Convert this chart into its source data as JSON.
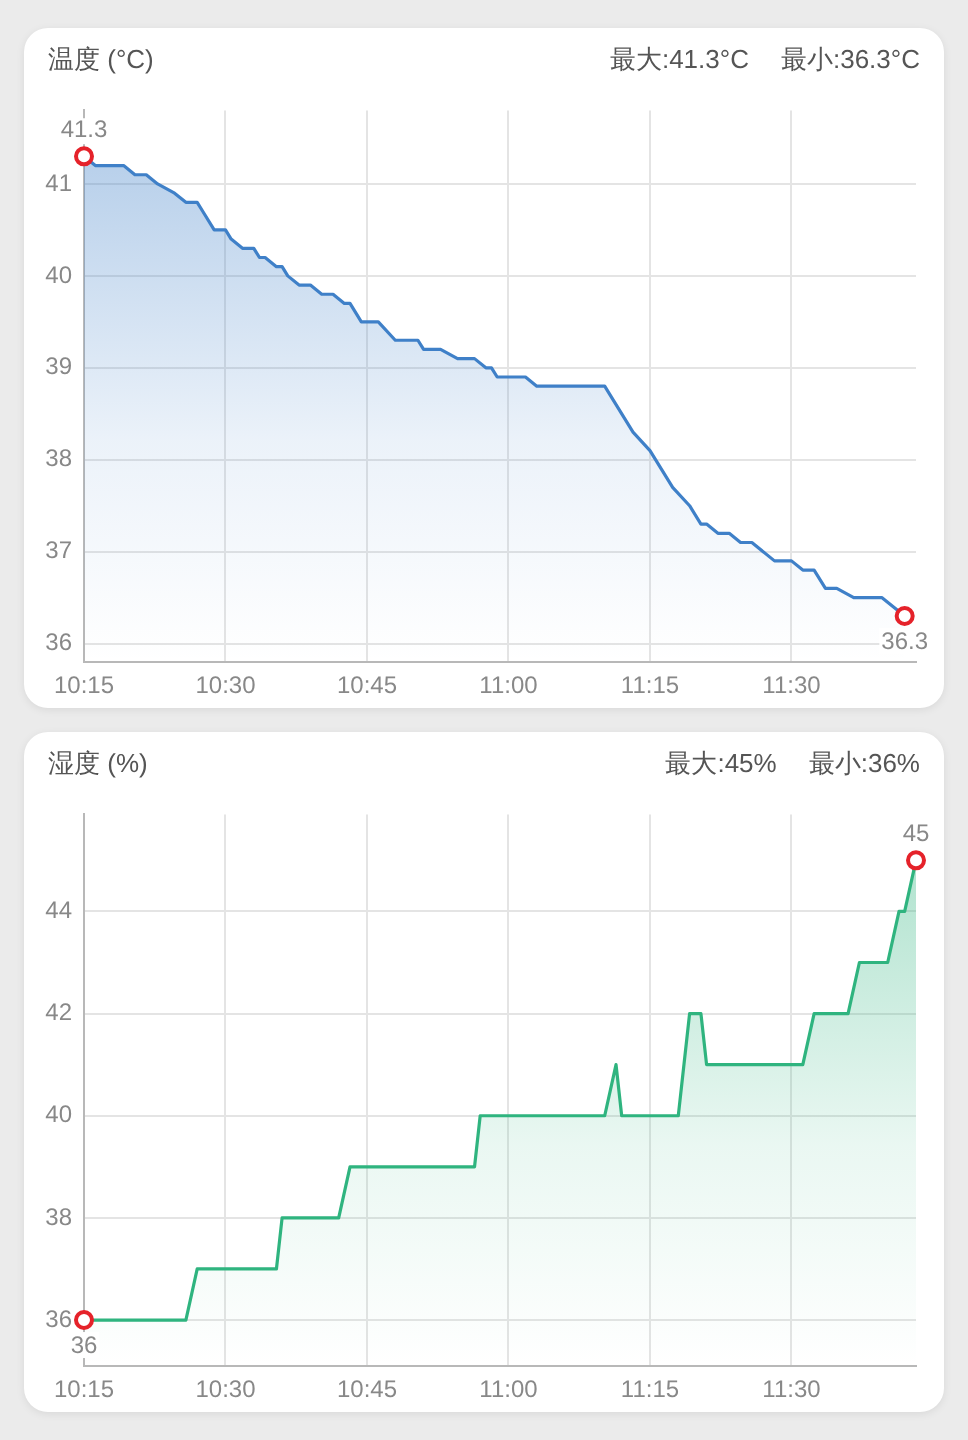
{
  "chart_data": [
    {
      "type": "area",
      "title": "温度 (°C)",
      "annotations": [
        "最大:41.3°C",
        "最小:36.3°C"
      ],
      "xlim": [
        10.25,
        11.72
      ],
      "xticks": [
        {
          "value": 10.25,
          "label": "10:15"
        },
        {
          "value": 10.5,
          "label": "10:30"
        },
        {
          "value": 10.75,
          "label": "10:45"
        },
        {
          "value": 11,
          "label": "11:00"
        },
        {
          "value": 11.25,
          "label": "11:15"
        },
        {
          "value": 11.5,
          "label": "11:30"
        }
      ],
      "ylim": [
        35.8,
        41.8
      ],
      "yticks": [
        36,
        37,
        38,
        39,
        40,
        41
      ],
      "grid": true,
      "series": [
        {
          "color": "#3f80c8",
          "marker": "none",
          "x": [
            10.25,
            10.27,
            10.32,
            10.34,
            10.36,
            10.38,
            10.41,
            10.43,
            10.45,
            10.46,
            10.48,
            10.5,
            10.51,
            10.53,
            10.55,
            10.56,
            10.57,
            10.59,
            10.6,
            10.61,
            10.63,
            10.65,
            10.67,
            10.69,
            10.71,
            10.72,
            10.74,
            10.77,
            10.8,
            10.84,
            10.85,
            10.88,
            10.91,
            10.94,
            10.96,
            10.97,
            10.98,
            11.03,
            11.05,
            11.17,
            11.18,
            11.22,
            11.25,
            11.29,
            11.32,
            11.34,
            11.35,
            11.37,
            11.39,
            11.41,
            11.43,
            11.47,
            11.5,
            11.52,
            11.54,
            11.56,
            11.58,
            11.61,
            11.66,
            11.7
          ],
          "values": [
            41.3,
            41.2,
            41.2,
            41.1,
            41.1,
            41.0,
            40.9,
            40.8,
            40.8,
            40.7,
            40.5,
            40.5,
            40.4,
            40.3,
            40.3,
            40.2,
            40.2,
            40.1,
            40.1,
            40.0,
            39.9,
            39.9,
            39.8,
            39.8,
            39.7,
            39.7,
            39.5,
            39.5,
            39.3,
            39.3,
            39.2,
            39.2,
            39.1,
            39.1,
            39.0,
            39.0,
            38.9,
            38.9,
            38.8,
            38.8,
            38.7,
            38.3,
            38.1,
            37.7,
            37.5,
            37.3,
            37.3,
            37.2,
            37.2,
            37.1,
            37.1,
            36.9,
            36.9,
            36.8,
            36.8,
            36.6,
            36.6,
            36.5,
            36.5,
            36.3
          ]
        },
        {
          "type": "scatter",
          "color": "#e5222a",
          "marker": "circle",
          "x": [
            10.25,
            11.7
          ],
          "values": [
            41.3,
            36.3
          ],
          "value_labels": [
            "41.3",
            "36.3"
          ]
        }
      ]
    },
    {
      "type": "area",
      "title": "湿度 (%)",
      "annotations": [
        "最大:45%",
        "最小:36%"
      ],
      "xlim": [
        10.25,
        11.72
      ],
      "xticks": [
        {
          "value": 10.25,
          "label": "10:15"
        },
        {
          "value": 10.5,
          "label": "10:30"
        },
        {
          "value": 10.75,
          "label": "10:45"
        },
        {
          "value": 11,
          "label": "11:00"
        },
        {
          "value": 11.25,
          "label": "11:15"
        },
        {
          "value": 11.5,
          "label": "11:30"
        }
      ],
      "ylim": [
        35.1,
        45.9
      ],
      "yticks": [
        36,
        38,
        40,
        42,
        44
      ],
      "grid": true,
      "series": [
        {
          "color": "#2fb47f",
          "marker": "none",
          "x": [
            10.25,
            10.43,
            10.45,
            10.59,
            10.6,
            10.7,
            10.72,
            10.94,
            10.95,
            11.17,
            11.19,
            11.2,
            11.3,
            11.32,
            11.34,
            11.35,
            11.52,
            11.54,
            11.6,
            11.62,
            11.67,
            11.69,
            11.7,
            11.72
          ],
          "values": [
            36,
            36,
            37,
            37,
            38,
            38,
            39,
            39,
            40,
            40,
            41,
            40,
            40,
            42,
            42,
            41,
            41,
            42,
            42,
            43,
            43,
            44,
            44,
            45
          ]
        },
        {
          "type": "scatter",
          "color": "#e5222a",
          "marker": "circle",
          "x": [
            10.25,
            11.72
          ],
          "values": [
            36,
            45
          ],
          "value_labels": [
            "36",
            "45"
          ]
        }
      ]
    }
  ]
}
